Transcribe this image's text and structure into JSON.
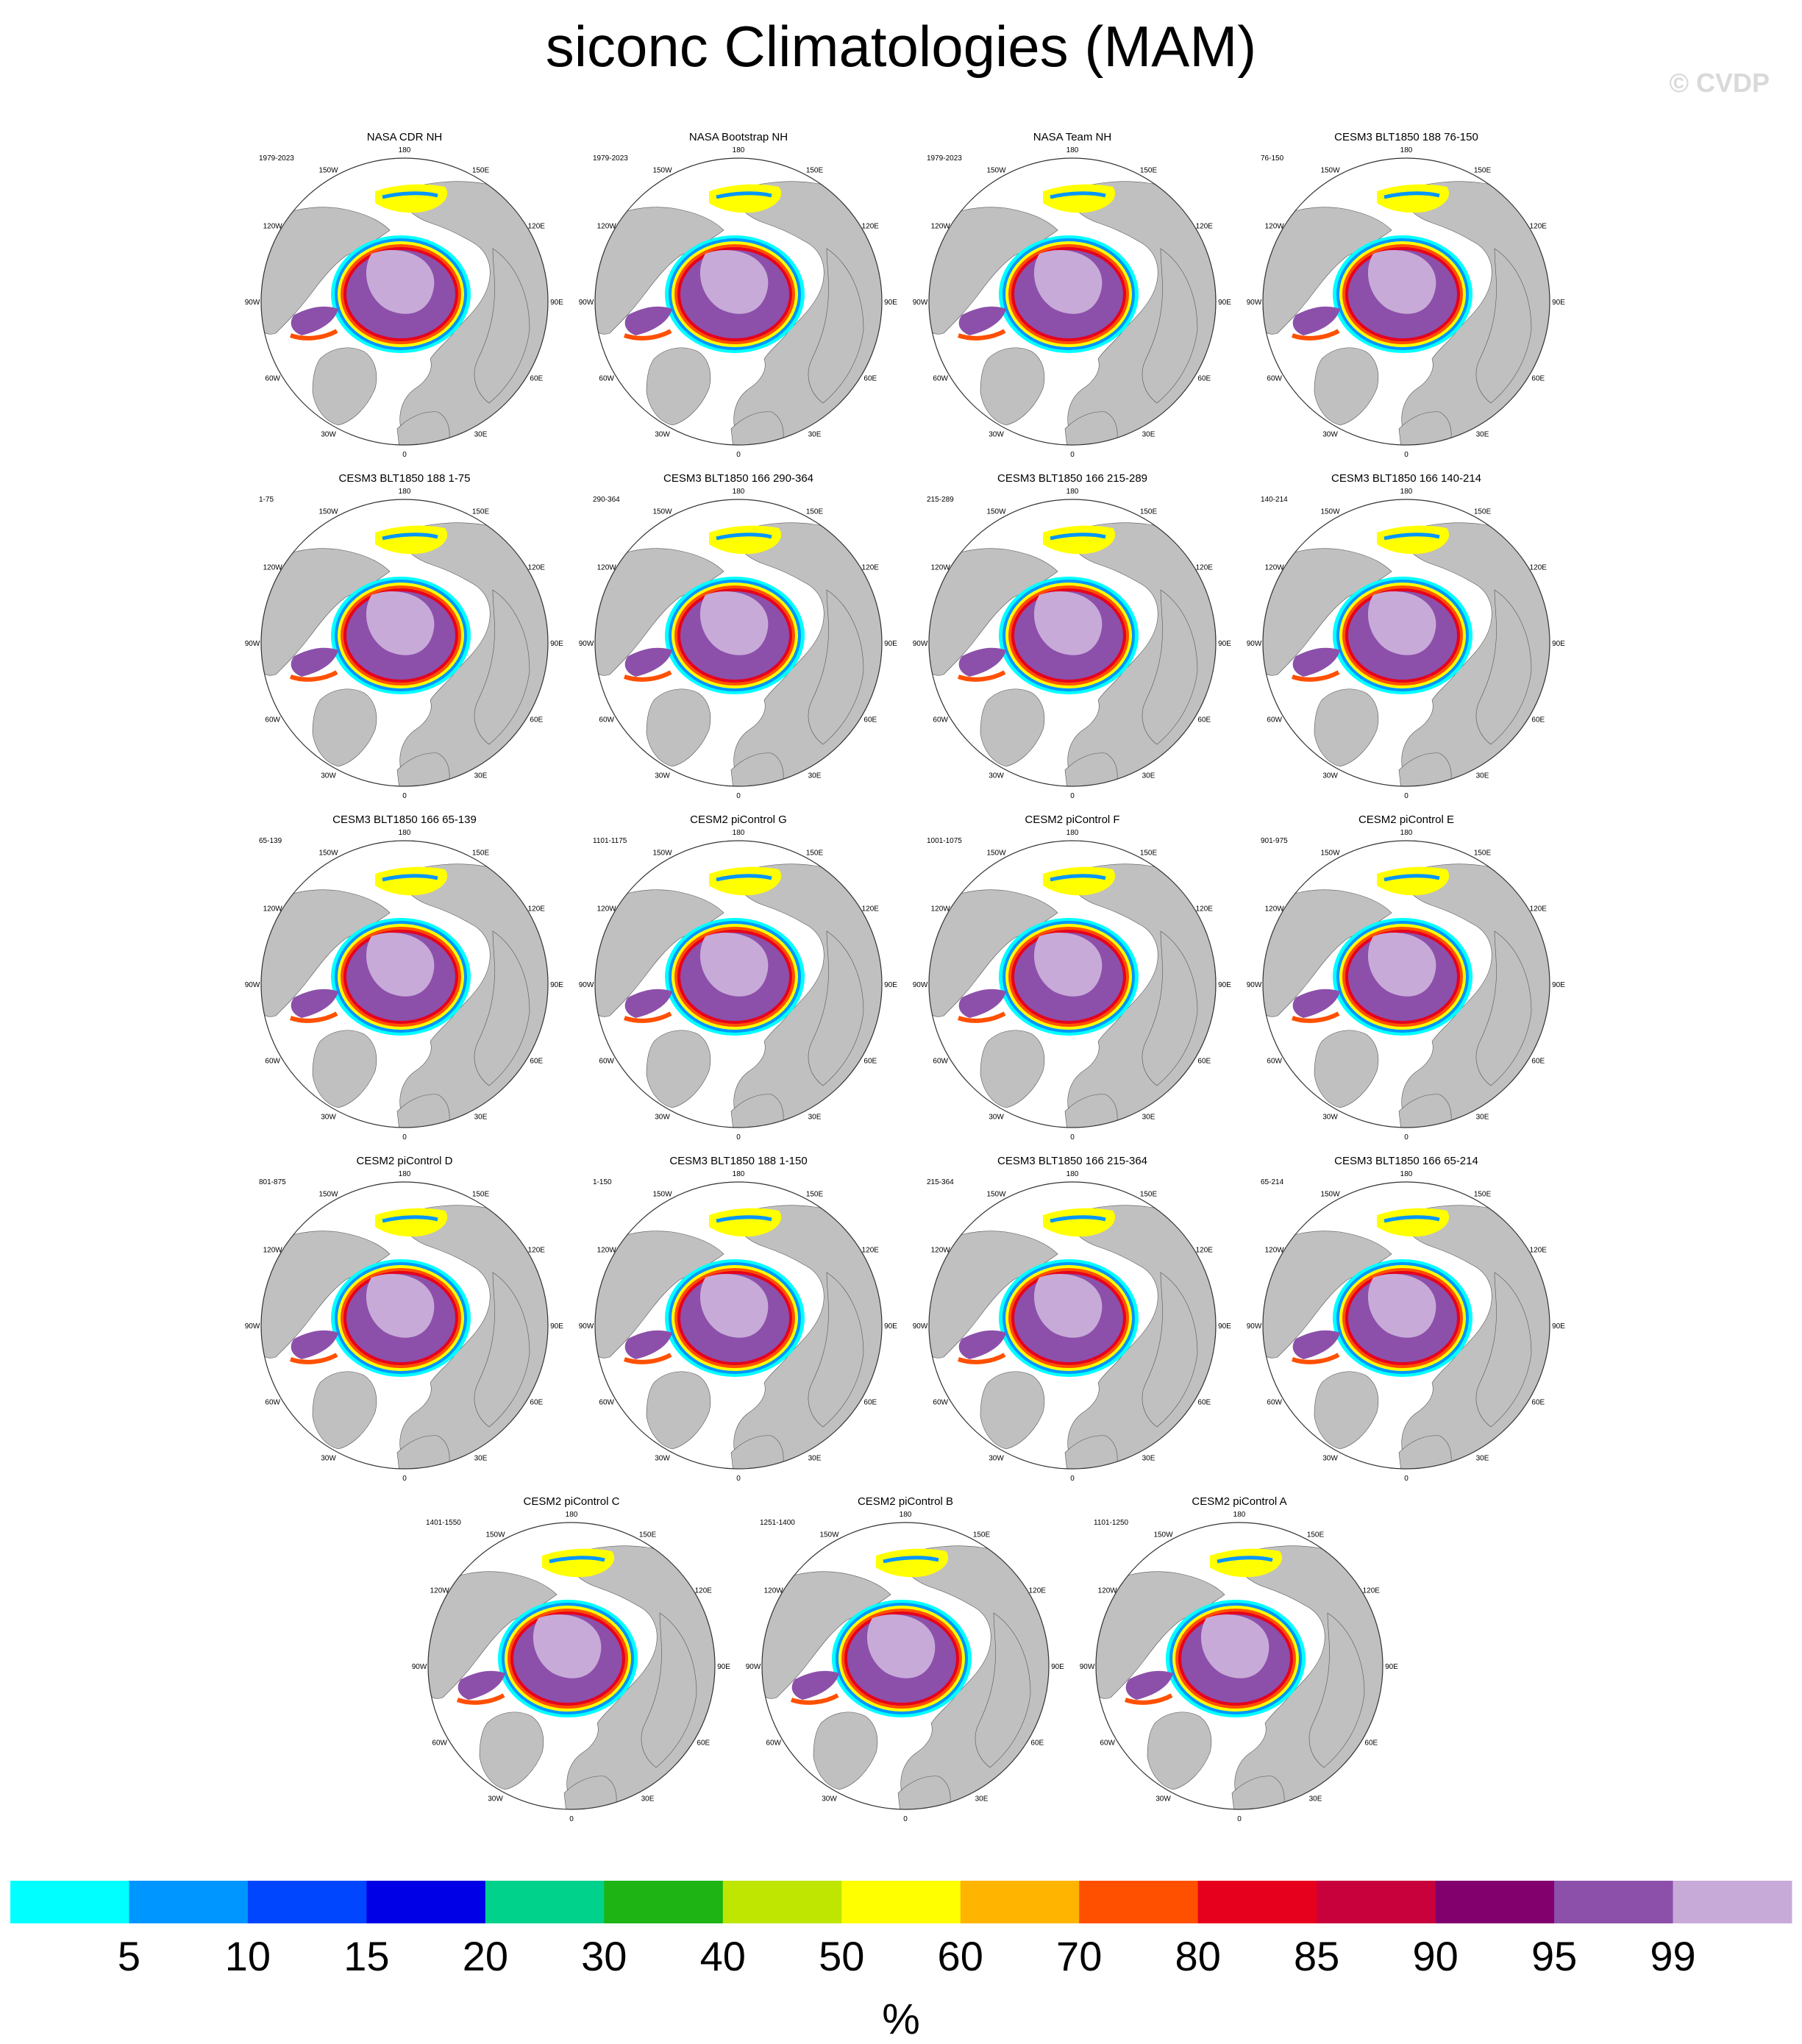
{
  "title": "siconc Climatologies (MAM)",
  "watermark": "© CVDP",
  "chart_data": {
    "type": "polar-map-panels",
    "variable": "siconc",
    "season": "MAM",
    "hemisphere": "NH",
    "longitude_labels": [
      "180",
      "150E",
      "120E",
      "90E",
      "60E",
      "30E",
      "0",
      "30W",
      "60W",
      "90W",
      "120W",
      "150W"
    ],
    "panels": [
      {
        "title": "NASA CDR NH",
        "period": "1979-2023"
      },
      {
        "title": "NASA Bootstrap NH",
        "period": "1979-2023"
      },
      {
        "title": "NASA Team NH",
        "period": "1979-2023"
      },
      {
        "title": "CESM3 BLT1850 188 76-150",
        "period": "76-150"
      },
      {
        "title": "CESM3 BLT1850 188 1-75",
        "period": "1-75"
      },
      {
        "title": "CESM3 BLT1850 166 290-364",
        "period": "290-364"
      },
      {
        "title": "CESM3 BLT1850 166 215-289",
        "period": "215-289"
      },
      {
        "title": "CESM3 BLT1850 166 140-214",
        "period": "140-214"
      },
      {
        "title": "CESM3 BLT1850 166 65-139",
        "period": "65-139"
      },
      {
        "title": "CESM2 piControl G",
        "period": "1101-1175"
      },
      {
        "title": "CESM2 piControl F",
        "period": "1001-1075"
      },
      {
        "title": "CESM2 piControl E",
        "period": "901-975"
      },
      {
        "title": "CESM2 piControl D",
        "period": "801-875"
      },
      {
        "title": "CESM3 BLT1850 188 1-150",
        "period": "1-150"
      },
      {
        "title": "CESM3 BLT1850 166 215-364",
        "period": "215-364"
      },
      {
        "title": "CESM3 BLT1850 166 65-214",
        "period": "65-214"
      },
      {
        "title": "CESM2 piControl C",
        "period": "1401-1550"
      },
      {
        "title": "CESM2 piControl B",
        "period": "1251-1400"
      },
      {
        "title": "CESM2 piControl A",
        "period": "1101-1250"
      }
    ],
    "colorbar": {
      "unit": "%",
      "tick_labels": [
        "5",
        "10",
        "15",
        "20",
        "30",
        "40",
        "50",
        "60",
        "70",
        "80",
        "85",
        "90",
        "95",
        "99"
      ],
      "colors": [
        "#00ffff",
        "#0096ff",
        "#0046ff",
        "#0000e6",
        "#00d28c",
        "#1eb414",
        "#bee600",
        "#ffff00",
        "#ffb400",
        "#ff5000",
        "#e6001e",
        "#c8003c",
        "#82006e",
        "#8c50aa",
        "#c8aad8"
      ]
    },
    "land_color": "#c0c0c0",
    "ocean_color": "#ffffff"
  }
}
